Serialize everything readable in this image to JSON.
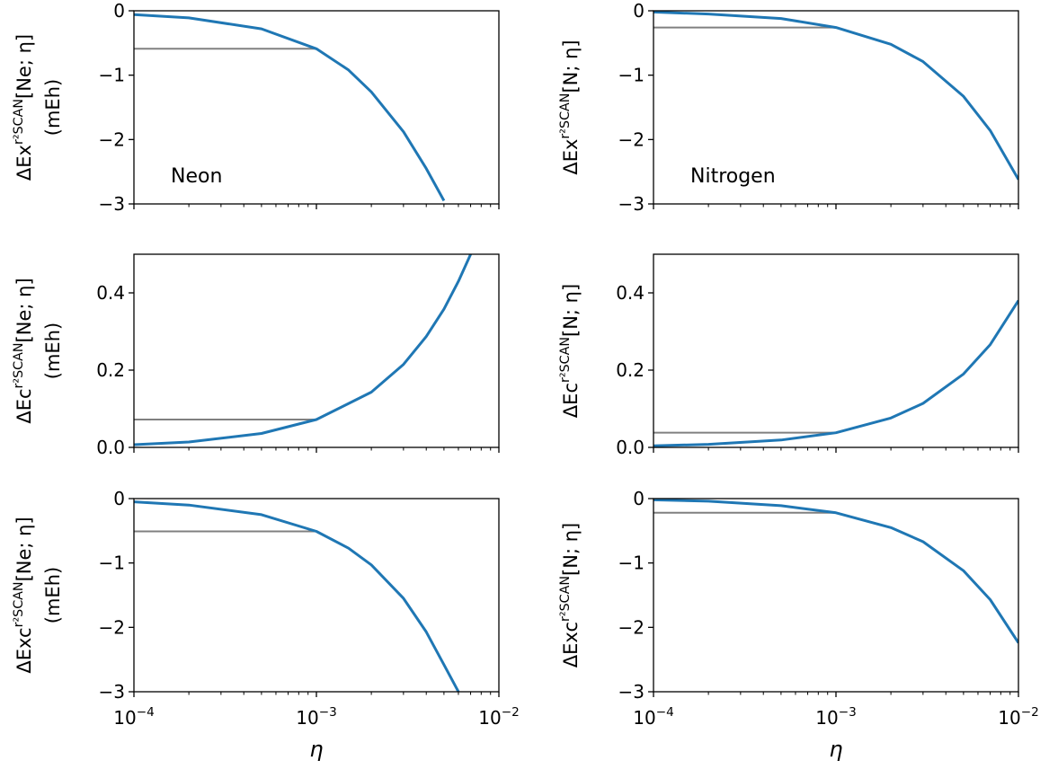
{
  "chart_data": [
    {
      "type": "line",
      "id": "ex-ne",
      "ylabel_lines": [
        "ΔE_x^{r²SCAN}[Ne; η]",
        "(mE_h)"
      ],
      "annotation": "Neon",
      "xlabel": "",
      "xscale": "log",
      "xlim": [
        0.0001,
        0.01
      ],
      "ylim": [
        -3,
        0
      ],
      "yticks": [
        -3,
        -2,
        -1,
        0
      ],
      "ytick_labels": [
        "−3",
        "−2",
        "−1",
        "0"
      ],
      "xtick_labels": [],
      "series": [
        {
          "color": "#1f77b4",
          "x": [
            0.0001,
            0.0002,
            0.0005,
            0.001,
            0.0015,
            0.002,
            0.003,
            0.004,
            0.005
          ],
          "y": [
            -0.06,
            -0.11,
            -0.28,
            -0.59,
            -0.92,
            -1.26,
            -1.88,
            -2.45,
            -2.95
          ]
        }
      ],
      "reference": {
        "color": "#808080",
        "value": -0.59,
        "x_end": 0.001
      }
    },
    {
      "type": "line",
      "id": "ex-n",
      "ylabel_lines": [
        "ΔE_x^{r²SCAN}[N; η]"
      ],
      "annotation": "Nitrogen",
      "xlabel": "",
      "xscale": "log",
      "xlim": [
        0.0001,
        0.01
      ],
      "ylim": [
        -3,
        0
      ],
      "yticks": [
        -3,
        -2,
        -1,
        0
      ],
      "ytick_labels": [
        "−3",
        "−2",
        "−1",
        "0"
      ],
      "xtick_labels": [],
      "series": [
        {
          "color": "#1f77b4",
          "x": [
            0.0001,
            0.0002,
            0.0005,
            0.001,
            0.002,
            0.003,
            0.005,
            0.007,
            0.01
          ],
          "y": [
            -0.02,
            -0.05,
            -0.12,
            -0.26,
            -0.52,
            -0.79,
            -1.33,
            -1.86,
            -2.62
          ]
        }
      ],
      "reference": {
        "color": "#808080",
        "value": -0.26,
        "x_end": 0.001
      }
    },
    {
      "type": "line",
      "id": "ec-ne",
      "ylabel_lines": [
        "ΔE_c^{r²SCAN}[Ne; η]",
        "(mE_h)"
      ],
      "annotation": "",
      "xlabel": "",
      "xscale": "log",
      "xlim": [
        0.0001,
        0.01
      ],
      "ylim": [
        0,
        0.5
      ],
      "yticks": [
        0,
        0.2,
        0.4
      ],
      "ytick_labels": [
        "0.0",
        "0.2",
        "0.4"
      ],
      "xtick_labels": [],
      "series": [
        {
          "color": "#1f77b4",
          "x": [
            0.0001,
            0.0002,
            0.0005,
            0.001,
            0.002,
            0.003,
            0.004,
            0.005,
            0.006,
            0.007
          ],
          "y": [
            0.007,
            0.014,
            0.036,
            0.072,
            0.143,
            0.215,
            0.287,
            0.358,
            0.43,
            0.5
          ]
        }
      ],
      "reference": {
        "color": "#808080",
        "value": 0.072,
        "x_end": 0.001
      }
    },
    {
      "type": "line",
      "id": "ec-n",
      "ylabel_lines": [
        "ΔE_c^{r²SCAN}[N; η]"
      ],
      "annotation": "",
      "xlabel": "",
      "xscale": "log",
      "xlim": [
        0.0001,
        0.01
      ],
      "ylim": [
        0,
        0.5
      ],
      "yticks": [
        0,
        0.2,
        0.4
      ],
      "ytick_labels": [
        "0.0",
        "0.2",
        "0.4"
      ],
      "xtick_labels": [],
      "series": [
        {
          "color": "#1f77b4",
          "x": [
            0.0001,
            0.0002,
            0.0005,
            0.001,
            0.002,
            0.003,
            0.005,
            0.007,
            0.01
          ],
          "y": [
            0.004,
            0.008,
            0.019,
            0.038,
            0.076,
            0.114,
            0.19,
            0.266,
            0.38
          ]
        }
      ],
      "reference": {
        "color": "#808080",
        "value": 0.038,
        "x_end": 0.001
      }
    },
    {
      "type": "line",
      "id": "exc-ne",
      "ylabel_lines": [
        "ΔE_xc^{r²SCAN}[Ne; η]",
        "(mE_h)"
      ],
      "annotation": "",
      "xlabel": "η",
      "xscale": "log",
      "xlim": [
        0.0001,
        0.01
      ],
      "ylim": [
        -3,
        0
      ],
      "yticks": [
        -3,
        -2,
        -1,
        0
      ],
      "ytick_labels": [
        "−3",
        "−2",
        "−1",
        "0"
      ],
      "xtick_labels": [
        "10^{−4}",
        "10^{−3}",
        "10^{−2}"
      ],
      "series": [
        {
          "color": "#1f77b4",
          "x": [
            0.0001,
            0.0002,
            0.0005,
            0.001,
            0.0015,
            0.002,
            0.003,
            0.004,
            0.005,
            0.006
          ],
          "y": [
            -0.05,
            -0.1,
            -0.25,
            -0.51,
            -0.77,
            -1.03,
            -1.55,
            -2.07,
            -2.58,
            -3.0
          ]
        }
      ],
      "reference": {
        "color": "#808080",
        "value": -0.51,
        "x_end": 0.001
      }
    },
    {
      "type": "line",
      "id": "exc-n",
      "ylabel_lines": [
        "ΔE_xc^{r²SCAN}[N; η]"
      ],
      "annotation": "",
      "xlabel": "η",
      "xscale": "log",
      "xlim": [
        0.0001,
        0.01
      ],
      "ylim": [
        -3,
        0
      ],
      "yticks": [
        -3,
        -2,
        -1,
        0
      ],
      "ytick_labels": [
        "−3",
        "−2",
        "−1",
        "0"
      ],
      "xtick_labels": [
        "10^{−4}",
        "10^{−3}",
        "10^{−2}"
      ],
      "series": [
        {
          "color": "#1f77b4",
          "x": [
            0.0001,
            0.0002,
            0.0005,
            0.001,
            0.002,
            0.003,
            0.005,
            0.007,
            0.01
          ],
          "y": [
            -0.02,
            -0.04,
            -0.11,
            -0.22,
            -0.45,
            -0.67,
            -1.12,
            -1.57,
            -2.24
          ]
        }
      ],
      "reference": {
        "color": "#808080",
        "value": -0.22,
        "x_end": 0.001
      }
    }
  ]
}
